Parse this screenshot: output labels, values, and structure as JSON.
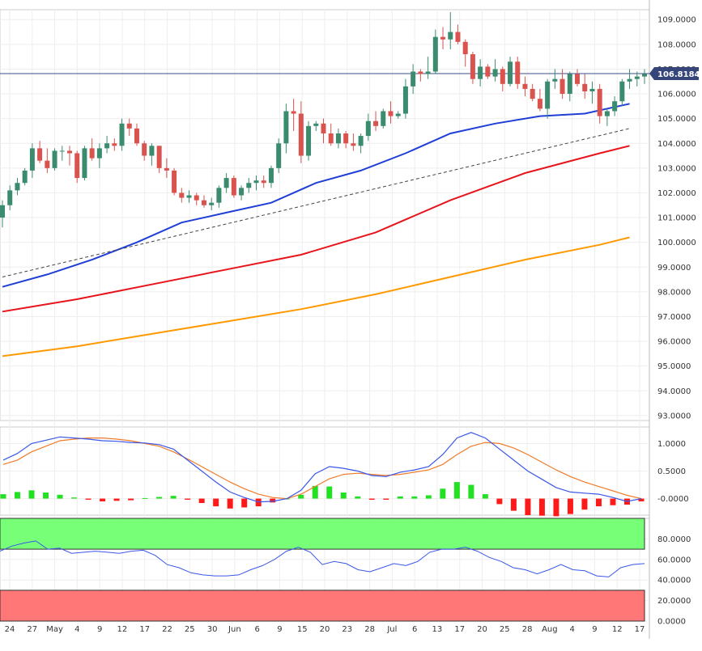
{
  "chart_data": [
    {
      "type": "candlestick",
      "panel": "price",
      "current_price_label": "106.8184",
      "current_price": 106.8184,
      "ylim": [
        92.8,
        109.4
      ],
      "yticks": [
        "93.0000",
        "94.0000",
        "95.0000",
        "96.0000",
        "97.0000",
        "98.0000",
        "99.0000",
        "100.0000",
        "101.0000",
        "102.0000",
        "103.0000",
        "104.0000",
        "105.0000",
        "106.0000",
        "107.0000",
        "108.0000",
        "109.0000"
      ],
      "candles": [
        [
          101.0,
          101.7,
          100.6,
          101.5
        ],
        [
          101.5,
          102.3,
          101.3,
          102.1
        ],
        [
          102.1,
          102.6,
          101.9,
          102.4
        ],
        [
          102.4,
          103.0,
          102.3,
          102.9
        ],
        [
          102.9,
          104.0,
          102.6,
          103.8
        ],
        [
          103.8,
          104.1,
          103.2,
          103.3
        ],
        [
          103.3,
          103.8,
          102.8,
          103.0
        ],
        [
          103.0,
          103.8,
          102.9,
          103.7
        ],
        [
          103.7,
          103.9,
          103.3,
          103.7
        ],
        [
          103.7,
          103.9,
          103.1,
          103.6
        ],
        [
          103.6,
          103.7,
          102.4,
          102.6
        ],
        [
          102.6,
          103.9,
          102.5,
          103.8
        ],
        [
          103.8,
          104.2,
          103.3,
          103.4
        ],
        [
          103.4,
          104.0,
          103.0,
          103.8
        ],
        [
          103.8,
          104.3,
          103.6,
          104.0
        ],
        [
          104.0,
          104.2,
          103.7,
          103.9
        ],
        [
          103.9,
          105.0,
          103.7,
          104.8
        ],
        [
          104.8,
          105.0,
          104.3,
          104.6
        ],
        [
          104.6,
          104.8,
          103.9,
          104.0
        ],
        [
          104.0,
          104.1,
          103.3,
          103.5
        ],
        [
          103.5,
          104.0,
          103.1,
          103.9
        ],
        [
          103.9,
          103.9,
          102.8,
          103.0
        ],
        [
          103.0,
          103.4,
          102.6,
          102.9
        ],
        [
          102.9,
          103.0,
          101.9,
          102.0
        ],
        [
          102.0,
          102.2,
          101.6,
          101.8
        ],
        [
          101.8,
          102.1,
          101.6,
          101.9
        ],
        [
          101.9,
          102.0,
          101.5,
          101.7
        ],
        [
          101.7,
          101.9,
          101.4,
          101.5
        ],
        [
          101.5,
          101.8,
          101.3,
          101.6
        ],
        [
          101.6,
          102.3,
          101.4,
          102.2
        ],
        [
          102.2,
          102.8,
          102.0,
          102.6
        ],
        [
          102.6,
          102.7,
          101.8,
          101.9
        ],
        [
          101.9,
          102.3,
          101.7,
          102.2
        ],
        [
          102.2,
          102.6,
          102.0,
          102.4
        ],
        [
          102.4,
          102.7,
          102.1,
          102.5
        ],
        [
          102.5,
          102.7,
          102.2,
          102.4
        ],
        [
          102.4,
          103.1,
          102.2,
          103.0
        ],
        [
          103.0,
          104.2,
          102.8,
          104.0
        ],
        [
          104.0,
          105.6,
          103.6,
          105.3
        ],
        [
          105.3,
          105.8,
          104.5,
          105.2
        ],
        [
          105.2,
          105.7,
          103.2,
          103.5
        ],
        [
          103.5,
          104.9,
          103.3,
          104.7
        ],
        [
          104.7,
          104.9,
          104.5,
          104.8
        ],
        [
          104.8,
          105.0,
          104.0,
          104.4
        ],
        [
          104.4,
          104.8,
          103.9,
          104.0
        ],
        [
          104.0,
          104.6,
          103.8,
          104.4
        ],
        [
          104.4,
          104.5,
          103.8,
          104.0
        ],
        [
          104.0,
          104.4,
          103.7,
          103.9
        ],
        [
          103.9,
          104.4,
          103.6,
          104.3
        ],
        [
          104.3,
          105.2,
          104.1,
          104.9
        ],
        [
          104.9,
          105.3,
          104.5,
          104.7
        ],
        [
          104.7,
          105.4,
          104.6,
          105.3
        ],
        [
          105.3,
          105.7,
          104.8,
          105.1
        ],
        [
          105.1,
          105.3,
          105.0,
          105.2
        ],
        [
          105.2,
          106.6,
          105.0,
          106.3
        ],
        [
          106.3,
          107.2,
          106.0,
          106.9
        ],
        [
          106.9,
          107.0,
          106.5,
          106.8
        ],
        [
          106.8,
          107.5,
          106.6,
          106.9
        ],
        [
          106.9,
          108.6,
          106.8,
          108.3
        ],
        [
          108.3,
          108.7,
          107.8,
          108.2
        ],
        [
          108.2,
          109.3,
          107.8,
          108.5
        ],
        [
          108.5,
          108.8,
          108.0,
          108.1
        ],
        [
          108.1,
          108.2,
          107.1,
          107.6
        ],
        [
          107.6,
          107.7,
          106.4,
          106.6
        ],
        [
          106.6,
          107.4,
          106.3,
          107.1
        ],
        [
          107.1,
          107.2,
          106.6,
          106.7
        ],
        [
          106.7,
          107.4,
          106.5,
          107.0
        ],
        [
          107.0,
          107.1,
          106.1,
          106.4
        ],
        [
          106.4,
          107.5,
          106.3,
          107.3
        ],
        [
          107.3,
          107.5,
          106.2,
          106.4
        ],
        [
          106.4,
          106.7,
          105.9,
          106.2
        ],
        [
          106.2,
          106.4,
          105.7,
          105.8
        ],
        [
          105.8,
          106.2,
          105.3,
          105.4
        ],
        [
          105.4,
          106.6,
          105.0,
          106.5
        ],
        [
          106.5,
          107.0,
          106.2,
          106.6
        ],
        [
          106.6,
          107.0,
          105.8,
          106.0
        ],
        [
          106.0,
          106.9,
          105.7,
          106.8
        ],
        [
          106.8,
          107.0,
          106.3,
          106.4
        ],
        [
          106.4,
          106.8,
          105.8,
          106.1
        ],
        [
          106.1,
          106.5,
          105.6,
          106.2
        ],
        [
          106.2,
          106.4,
          104.8,
          105.1
        ],
        [
          105.1,
          105.4,
          104.7,
          105.3
        ],
        [
          105.3,
          105.9,
          105.1,
          105.7
        ],
        [
          105.7,
          106.6,
          105.5,
          106.5
        ],
        [
          106.5,
          107.0,
          106.2,
          106.6
        ],
        [
          106.6,
          106.9,
          106.3,
          106.7
        ],
        [
          106.7,
          107.0,
          106.4,
          106.8
        ]
      ],
      "sma_blue": [
        [
          0,
          98.2
        ],
        [
          6,
          98.7
        ],
        [
          12,
          99.3
        ],
        [
          18,
          100.0
        ],
        [
          24,
          100.8
        ],
        [
          30,
          101.2
        ],
        [
          36,
          101.6
        ],
        [
          42,
          102.4
        ],
        [
          48,
          102.9
        ],
        [
          54,
          103.6
        ],
        [
          60,
          104.4
        ],
        [
          66,
          104.8
        ],
        [
          72,
          105.1
        ],
        [
          78,
          105.2
        ],
        [
          84,
          105.6
        ]
      ],
      "sma_red": [
        [
          0,
          97.2
        ],
        [
          10,
          97.7
        ],
        [
          20,
          98.3
        ],
        [
          30,
          98.9
        ],
        [
          40,
          99.5
        ],
        [
          50,
          100.4
        ],
        [
          60,
          101.7
        ],
        [
          70,
          102.8
        ],
        [
          80,
          103.6
        ],
        [
          84,
          103.9
        ]
      ],
      "sma_orange": [
        [
          0,
          95.4
        ],
        [
          10,
          95.8
        ],
        [
          20,
          96.3
        ],
        [
          30,
          96.8
        ],
        [
          40,
          97.3
        ],
        [
          50,
          97.9
        ],
        [
          60,
          98.6
        ],
        [
          70,
          99.3
        ],
        [
          80,
          99.9
        ],
        [
          84,
          100.2
        ]
      ],
      "trendline": [
        [
          0,
          98.6
        ],
        [
          84,
          104.6
        ]
      ],
      "colors": {
        "up": "#3b8c6e",
        "down": "#d9534f",
        "sma_blue": "#1f3fd6",
        "sma_red": "#e8141c",
        "sma_orange": "#ff9900",
        "price_line": "#3a4f8a",
        "badge": "#36457a"
      }
    },
    {
      "type": "macd",
      "panel": "oscillator",
      "ylim": [
        -0.3,
        1.3
      ],
      "yticks": [
        "1.0000",
        "0.5000",
        "-0.0000"
      ],
      "macd_line": [
        0.7,
        0.82,
        1.0,
        1.06,
        1.12,
        1.1,
        1.08,
        1.05,
        1.04,
        1.02,
        1.01,
        0.98,
        0.9,
        0.7,
        0.5,
        0.3,
        0.12,
        0.02,
        -0.06,
        -0.05,
        0.0,
        0.15,
        0.45,
        0.58,
        0.55,
        0.5,
        0.42,
        0.4,
        0.48,
        0.52,
        0.58,
        0.8,
        1.1,
        1.2,
        1.1,
        0.9,
        0.7,
        0.5,
        0.35,
        0.2,
        0.12,
        0.1,
        0.08,
        0.02,
        -0.05,
        0.0
      ],
      "signal_line": [
        0.62,
        0.7,
        0.85,
        0.95,
        1.05,
        1.08,
        1.1,
        1.1,
        1.08,
        1.05,
        1.0,
        0.95,
        0.85,
        0.72,
        0.58,
        0.44,
        0.3,
        0.18,
        0.08,
        0.02,
        0.0,
        0.08,
        0.22,
        0.36,
        0.44,
        0.46,
        0.44,
        0.42,
        0.44,
        0.48,
        0.52,
        0.62,
        0.8,
        0.95,
        1.02,
        1.0,
        0.92,
        0.8,
        0.66,
        0.52,
        0.4,
        0.3,
        0.22,
        0.14,
        0.06,
        0.0
      ],
      "histogram": [
        0.08,
        0.12,
        0.15,
        0.11,
        0.07,
        0.02,
        -0.02,
        -0.05,
        -0.04,
        -0.03,
        0.01,
        0.03,
        0.05,
        -0.02,
        -0.08,
        -0.14,
        -0.18,
        -0.16,
        -0.14,
        -0.07,
        0.0,
        0.07,
        0.23,
        0.22,
        0.11,
        0.04,
        -0.02,
        -0.02,
        0.04,
        0.04,
        0.06,
        0.18,
        0.3,
        0.25,
        0.08,
        -0.1,
        -0.22,
        -0.3,
        -0.31,
        -0.32,
        -0.28,
        -0.2,
        -0.14,
        -0.12,
        -0.11,
        -0.05
      ],
      "colors": {
        "macd": "#3a57e8",
        "signal": "#f07c2a",
        "positive": "#22e022",
        "negative": "#ff1a1a"
      }
    },
    {
      "type": "rsi",
      "panel": "rsi",
      "ylim": [
        0,
        100
      ],
      "yticks": [
        "80.0000",
        "60.0000",
        "40.0000",
        "20.0000",
        "0.0000"
      ],
      "overbought_band": [
        70,
        100
      ],
      "oversold_band": [
        0,
        30
      ],
      "values": [
        68,
        73,
        76,
        78,
        70,
        71,
        66,
        67,
        68,
        67,
        66,
        68,
        69,
        64,
        55,
        52,
        47,
        45,
        44,
        44,
        45,
        50,
        54,
        60,
        68,
        72,
        67,
        55,
        58,
        56,
        50,
        48,
        52,
        56,
        54,
        58,
        67,
        70,
        70,
        72,
        68,
        62,
        58,
        52,
        50,
        46,
        50,
        55,
        50,
        49,
        44,
        43,
        52,
        55,
        56
      ],
      "colors": {
        "line": "#3a57e8",
        "overbought": "#77ff77",
        "oversold": "#ff7777"
      }
    }
  ],
  "x_axis": {
    "tick_labels": [
      "24",
      "27",
      "May",
      "4",
      "9",
      "12",
      "17",
      "22",
      "25",
      "30",
      "Jun",
      "6",
      "9",
      "15",
      "20",
      "23",
      "28",
      "Jul",
      "6",
      "13",
      "17",
      "20",
      "25",
      "28",
      "Aug",
      "4",
      "9",
      "12",
      "17"
    ]
  }
}
